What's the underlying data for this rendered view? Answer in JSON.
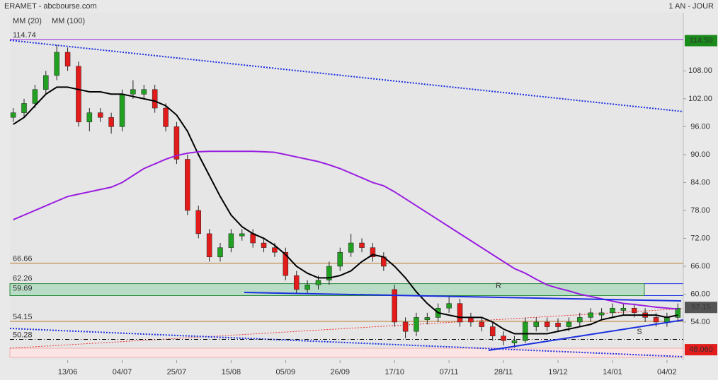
{
  "chart_data": {
    "type": "candlestick",
    "title": "ERAMET - abcbourse.com",
    "period": "1 AN - JOUR",
    "up_color": "#22a022",
    "down_color": "#e21b1b",
    "candles": {
      "open": [
        98,
        99,
        101,
        104,
        107,
        112,
        109,
        97,
        99,
        98,
        96,
        103,
        103,
        104,
        100,
        96,
        89,
        78,
        73,
        68,
        70,
        72.5,
        73,
        71,
        70,
        69,
        64,
        61,
        62,
        63,
        66,
        69,
        71,
        70,
        68,
        61,
        54,
        52,
        54.5,
        55,
        57,
        58,
        55,
        54,
        53,
        51,
        49.5,
        50,
        53,
        54,
        53.8,
        53,
        54,
        55,
        55.5,
        56,
        56.5,
        57,
        56,
        55,
        54,
        55
      ],
      "high": [
        100,
        102,
        105,
        108,
        113.5,
        113,
        110,
        100,
        100,
        99,
        104,
        106,
        105,
        105,
        101,
        97,
        90,
        79,
        74,
        71,
        74,
        74,
        74,
        72,
        71,
        70,
        65,
        63,
        64,
        67,
        70,
        73,
        72,
        71,
        69,
        62,
        55,
        56,
        56,
        58,
        59.5,
        59,
        56,
        55,
        54,
        52,
        51,
        55,
        55,
        55,
        54.8,
        55,
        56,
        57,
        57,
        58,
        58,
        58,
        57,
        56,
        56,
        58
      ],
      "low": [
        97,
        98,
        100,
        103,
        106,
        108,
        96,
        95,
        97,
        94.5,
        95,
        102,
        102,
        99,
        95,
        88,
        77,
        72,
        67,
        67,
        69,
        71.5,
        70,
        69,
        68,
        63,
        60,
        60,
        61,
        62,
        65,
        68,
        69,
        67,
        65,
        53,
        50.5,
        51,
        53.5,
        54,
        56,
        53,
        53,
        52,
        50,
        49,
        48.5,
        49.5,
        52,
        52,
        52,
        52,
        53,
        54,
        54.5,
        55,
        55.5,
        55,
        54,
        53,
        53,
        54
      ],
      "close": [
        99,
        101,
        104,
        107,
        112,
        109,
        97,
        99,
        98,
        96,
        103,
        104,
        104,
        100,
        96,
        89,
        78,
        73,
        68,
        70,
        73,
        73,
        71,
        70,
        69,
        64,
        61,
        62,
        63,
        66,
        69,
        71,
        70,
        68,
        66,
        54,
        52,
        55,
        55,
        57,
        58,
        54,
        54,
        53,
        51,
        50,
        50,
        54,
        54,
        53,
        53,
        54,
        55,
        56,
        56,
        57,
        57,
        56,
        55,
        54,
        55,
        57
      ]
    },
    "series": [
      {
        "name": "MM (20)",
        "color": "#000000",
        "values": [
          96.5,
          98,
          100.5,
          103,
          104.5,
          104.5,
          104,
          103.5,
          103.5,
          103,
          103,
          102.5,
          102,
          101.5,
          100.5,
          98.5,
          95,
          90,
          85.5,
          81,
          77,
          74.5,
          73,
          72,
          70.5,
          68.5,
          66,
          64.5,
          63.5,
          63.5,
          64,
          65,
          67,
          68.5,
          68,
          66,
          63.5,
          60.5,
          58,
          56,
          55.5,
          55,
          55,
          55,
          54,
          52.5,
          51.5,
          51.5,
          51.5,
          51.5,
          52,
          52.5,
          53,
          53.5,
          54.5,
          55,
          55.5,
          55.5,
          55.5,
          55.5,
          55,
          55.5
        ]
      },
      {
        "name": "MM (100)",
        "color": "#9a1ee0",
        "values": [
          76,
          77,
          78,
          79,
          80,
          81,
          81.5,
          82,
          82.5,
          83,
          84,
          85.5,
          87,
          88,
          89,
          89.8,
          90.3,
          90.6,
          90.7,
          90.7,
          90.7,
          90.7,
          90.7,
          90.6,
          90.5,
          90,
          89.5,
          89,
          88.5,
          87.8,
          87,
          86,
          85,
          84,
          83.3,
          82,
          80.5,
          79,
          77.5,
          76,
          74.5,
          73,
          71.5,
          70,
          68.5,
          67,
          65.5,
          64.5,
          63.2,
          62,
          61.3,
          60.7,
          60,
          59.5,
          59,
          58.5,
          58,
          57.8,
          57.5,
          57.2,
          57,
          56.8
        ]
      }
    ],
    "xlim": [
      -0.3,
      61.5
    ],
    "xticks": [
      {
        "value": 5,
        "label": "13/06"
      },
      {
        "value": 10,
        "label": "04/07"
      },
      {
        "value": 15,
        "label": "25/07"
      },
      {
        "value": 20,
        "label": "15/08"
      },
      {
        "value": 25,
        "label": "05/09"
      },
      {
        "value": 30,
        "label": "26/09"
      },
      {
        "value": 35,
        "label": "17/10"
      },
      {
        "value": 40,
        "label": "07/11"
      },
      {
        "value": 45,
        "label": "28/11"
      },
      {
        "value": 50,
        "label": "19/12"
      },
      {
        "value": 55,
        "label": "14/01"
      },
      {
        "value": 60,
        "label": "04/02"
      }
    ],
    "ylim": [
      45.8,
      120.5
    ],
    "yticks": [
      {
        "value": 54,
        "label": "54.00"
      },
      {
        "value": 60,
        "label": "60.00"
      },
      {
        "value": 66,
        "label": "66.00"
      },
      {
        "value": 72,
        "label": "72.00"
      },
      {
        "value": 78,
        "label": "78.00"
      },
      {
        "value": 84,
        "label": "84.00"
      },
      {
        "value": 90,
        "label": "90.00"
      },
      {
        "value": 96,
        "label": "96.00"
      },
      {
        "value": 102,
        "label": "102.00"
      },
      {
        "value": 108,
        "label": "108.00"
      }
    ],
    "levels": [
      {
        "value": 114.74,
        "color": "#9a1ee0"
      },
      {
        "value": 66.66,
        "color": "#b87a2a"
      },
      {
        "value": 54.15,
        "color": "#b87a2a"
      },
      {
        "value": 50.28,
        "color": "#000000"
      }
    ],
    "zone": {
      "low": 59.69,
      "high": 62.26,
      "color": "#b9dcc6",
      "border": "#2a8a3a"
    },
    "price_tags": [
      {
        "value": 114.5,
        "label": "114.50",
        "color": "#1a8a1a"
      },
      {
        "value": 57.15,
        "color": "#555555"
      },
      {
        "value": 48.06,
        "label": "48.060",
        "color": "#e21b1b"
      }
    ],
    "annotations": [
      "R",
      "S"
    ]
  }
}
